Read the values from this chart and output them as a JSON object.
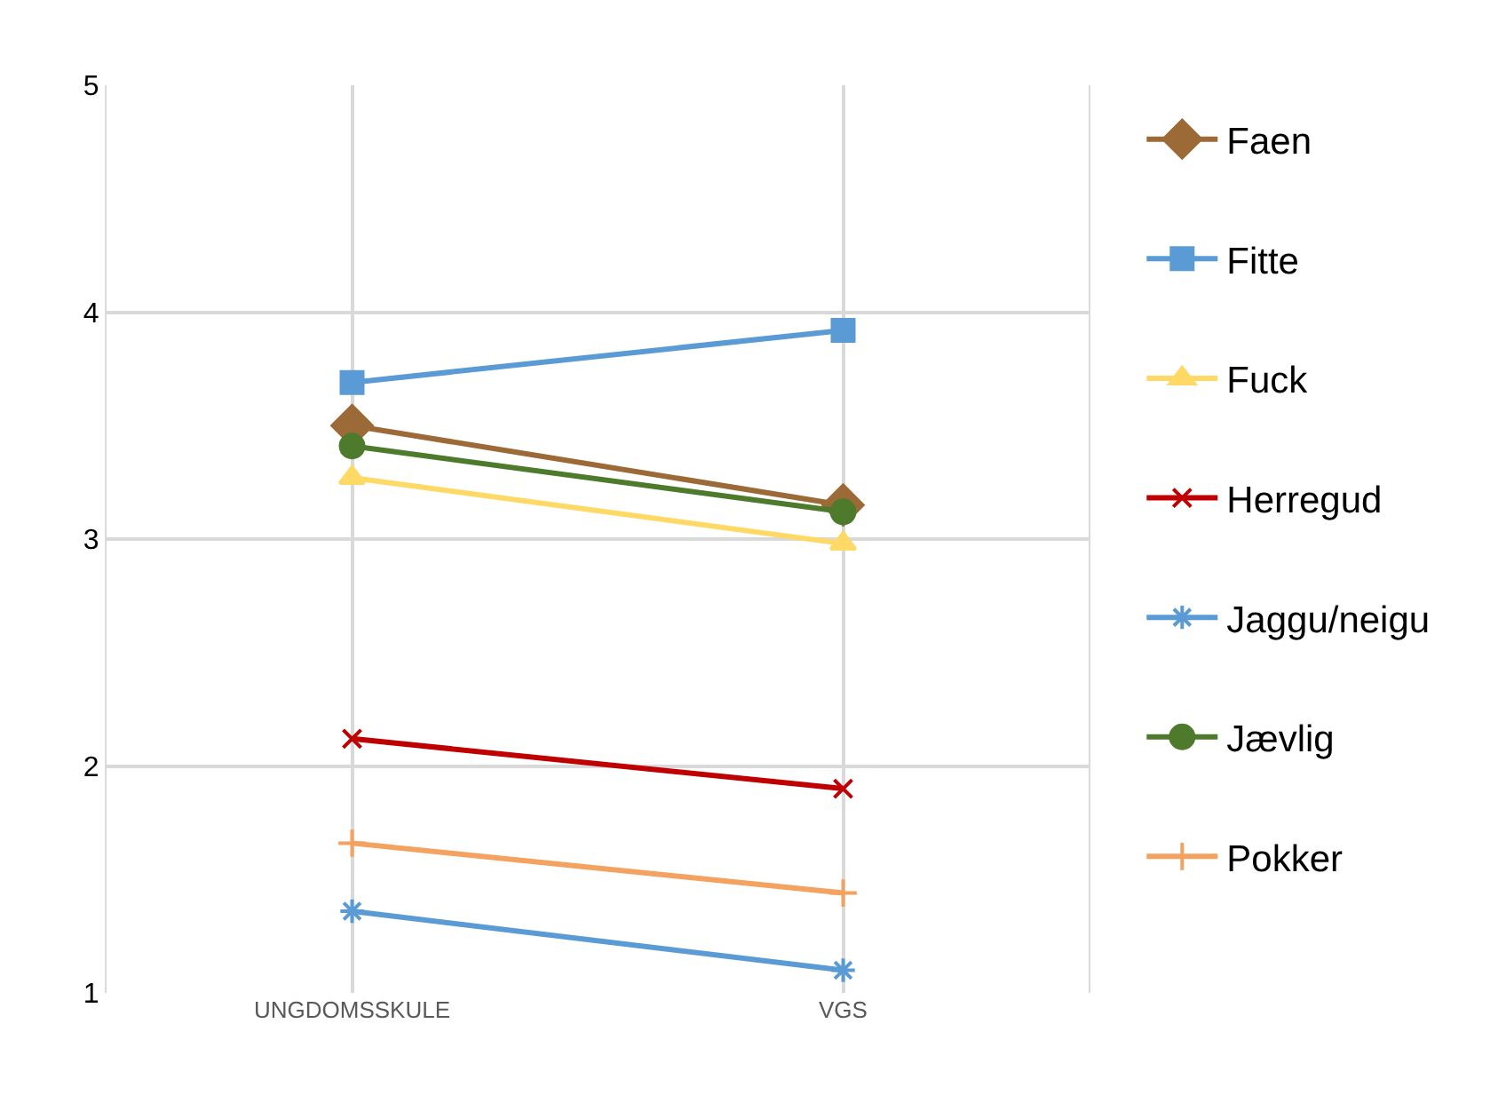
{
  "chart_data": {
    "type": "line",
    "categories": [
      "UNGDOMSSKULE",
      "VGS"
    ],
    "series": [
      {
        "name": "Faen",
        "color": "#9c6a37",
        "marker": "diamond",
        "values": [
          3.5,
          3.15
        ]
      },
      {
        "name": "Fitte",
        "color": "#5b9bd5",
        "marker": "square",
        "values": [
          3.69,
          3.92
        ]
      },
      {
        "name": "Fuck",
        "color": "#ffd966",
        "marker": "triangle",
        "values": [
          3.27,
          2.98
        ]
      },
      {
        "name": "Herregud",
        "color": "#c00000",
        "marker": "x",
        "values": [
          2.12,
          1.9
        ]
      },
      {
        "name": "Jaggu/neigu",
        "color": "#5b9bd5",
        "marker": "cross",
        "values": [
          1.36,
          1.1
        ]
      },
      {
        "name": "Jævlig",
        "color": "#4e7a2c",
        "marker": "circle",
        "values": [
          3.41,
          3.12
        ]
      },
      {
        "name": "Pokker",
        "color": "#f4a25f",
        "marker": "plus",
        "values": [
          1.66,
          1.44
        ]
      }
    ],
    "ylim": [
      1,
      5
    ],
    "yticks": [
      1,
      2,
      3,
      4,
      5
    ],
    "grid": true,
    "legend": "right"
  }
}
